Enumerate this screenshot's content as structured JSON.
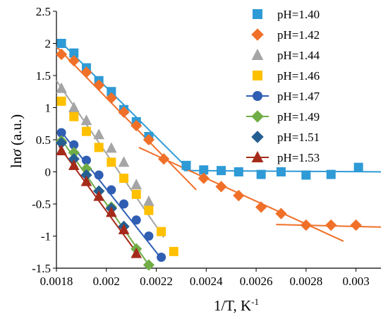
{
  "chart_data": {
    "type": "scatter",
    "xlabel": "1/T, K",
    "xlabel_sup": "-1",
    "ylabel": "lnσ (a.u.)",
    "ylabel_main": "ln",
    "ylabel_sigma": "σ",
    "ylabel_unit": " (a.u.)",
    "xlim": [
      0.0018,
      0.0031
    ],
    "ylim": [
      -1.5,
      2.5
    ],
    "x_ticks": [
      0.0018,
      0.002,
      0.0022,
      0.0024,
      0.0026,
      0.0028,
      0.003
    ],
    "x_tick_labels": [
      "0.0018",
      "0.002",
      "0.0022",
      "0.0024",
      "0.0026",
      "0.0028",
      "0.003"
    ],
    "y_ticks": [
      2.5,
      2,
      1.5,
      1,
      0.5,
      0,
      -0.5,
      -1,
      -1.5
    ],
    "y_tick_labels": [
      "2.5",
      "2",
      "1.5",
      "1",
      "0.5",
      "0",
      "-0.5",
      "-1",
      "-1.5"
    ],
    "grid": false,
    "legend_position": "top-right",
    "series": [
      {
        "name": "pH=1.40",
        "color": "#2e9ad6",
        "marker": "square",
        "x": [
          0.00182,
          0.00187,
          0.00192,
          0.00197,
          0.00202,
          0.00207,
          0.00212,
          0.00217,
          0.00232,
          0.00239,
          0.00246,
          0.00253,
          0.00262,
          0.0027,
          0.0028,
          0.0029,
          0.00301
        ],
        "y": [
          2.0,
          1.85,
          1.62,
          1.42,
          1.25,
          0.97,
          0.78,
          0.55,
          0.1,
          0.03,
          0.02,
          0.0,
          -0.04,
          0.0,
          -0.05,
          -0.04,
          0.07
        ],
        "fit_lines": [
          {
            "x": [
              0.00181,
              0.00234
            ],
            "y": [
              2.05,
              0.0
            ]
          },
          {
            "x": [
              0.00231,
              0.0031
            ],
            "y": [
              0.02,
              0.0
            ]
          }
        ]
      },
      {
        "name": "pH=1.42",
        "color": "#f07029",
        "marker": "diamond",
        "x": [
          0.00182,
          0.00187,
          0.00192,
          0.00197,
          0.00202,
          0.00207,
          0.00212,
          0.00217,
          0.00223,
          0.00239,
          0.00246,
          0.00253,
          0.00262,
          0.0027,
          0.0028,
          0.0029,
          0.003
        ],
        "y": [
          1.83,
          1.73,
          1.55,
          1.35,
          1.15,
          0.93,
          0.72,
          0.5,
          0.2,
          -0.1,
          -0.23,
          -0.37,
          -0.55,
          -0.65,
          -0.83,
          -0.83,
          -0.83
        ],
        "fit_lines": [
          {
            "x": [
              0.0018,
              0.00236
            ],
            "y": [
              1.95,
              -0.28
            ]
          },
          {
            "x": [
              0.00213,
              0.00295
            ],
            "y": [
              0.38,
              -1.08
            ]
          },
          {
            "x": [
              0.00268,
              0.0031
            ],
            "y": [
              -0.82,
              -0.86
            ]
          }
        ]
      },
      {
        "name": "pH=1.44",
        "color": "#a5a5a5",
        "marker": "triangle",
        "x": [
          0.00182,
          0.00187,
          0.00192,
          0.00197,
          0.00202,
          0.00207,
          0.00212,
          0.00217
        ],
        "y": [
          1.3,
          1.0,
          0.8,
          0.58,
          0.37,
          0.15,
          -0.2,
          -0.46
        ],
        "fit_lines": [
          {
            "x": [
              0.0018,
              0.00223
            ],
            "y": [
              1.42,
              -1.02
            ]
          }
        ]
      },
      {
        "name": "pH=1.46",
        "color": "#ffc000",
        "marker": "square",
        "x": [
          0.00182,
          0.00187,
          0.00192,
          0.00197,
          0.00202,
          0.00207,
          0.00212,
          0.00217,
          0.00222,
          0.00227
        ],
        "y": [
          1.1,
          0.86,
          0.63,
          0.38,
          0.15,
          -0.1,
          -0.35,
          -0.6,
          -0.93,
          -1.24
        ],
        "fit_lines": []
      },
      {
        "name": "pH=1.47",
        "color": "#2f5eb3",
        "marker": "circle",
        "x": [
          0.00182,
          0.00187,
          0.00192,
          0.00197,
          0.00202,
          0.00207,
          0.00212,
          0.00217,
          0.00222
        ],
        "y": [
          0.61,
          0.42,
          0.18,
          -0.05,
          -0.28,
          -0.5,
          -0.75,
          -1.0,
          -1.33
        ],
        "fit_lines": [
          {
            "x": [
              0.00181,
              0.00222
            ],
            "y": [
              0.67,
              -1.35
            ]
          }
        ]
      },
      {
        "name": "pH=1.49",
        "color": "#70ad47",
        "marker": "diamond",
        "x": [
          0.00182,
          0.00187,
          0.00192,
          0.00197,
          0.00202,
          0.00207,
          0.00212,
          0.00217
        ],
        "y": [
          0.48,
          0.3,
          0.05,
          -0.3,
          -0.55,
          -0.85,
          -1.2,
          -1.45
        ],
        "fit_lines": [
          {
            "x": [
              0.00181,
              0.00217
            ],
            "y": [
              0.56,
              -1.45
            ]
          }
        ]
      },
      {
        "name": "pH=1.51",
        "color": "#255e91",
        "marker": "diamond",
        "x": [
          0.00182,
          0.00187,
          0.00192,
          0.00197,
          0.00202,
          0.00207
        ],
        "y": [
          0.45,
          0.2,
          -0.05,
          -0.3,
          -0.57,
          -0.85
        ],
        "fit_lines": []
      },
      {
        "name": "pH=1.53",
        "color": "#a52a1a",
        "marker": "triangle",
        "x": [
          0.00182,
          0.00187,
          0.00192,
          0.00197,
          0.00202,
          0.00207,
          0.00212
        ],
        "y": [
          0.33,
          0.1,
          -0.15,
          -0.38,
          -0.63,
          -0.9,
          -1.27
        ],
        "fit_lines": [
          {
            "x": [
              0.00181,
              0.00212
            ],
            "y": [
              0.4,
              -1.25
            ]
          }
        ]
      }
    ]
  }
}
